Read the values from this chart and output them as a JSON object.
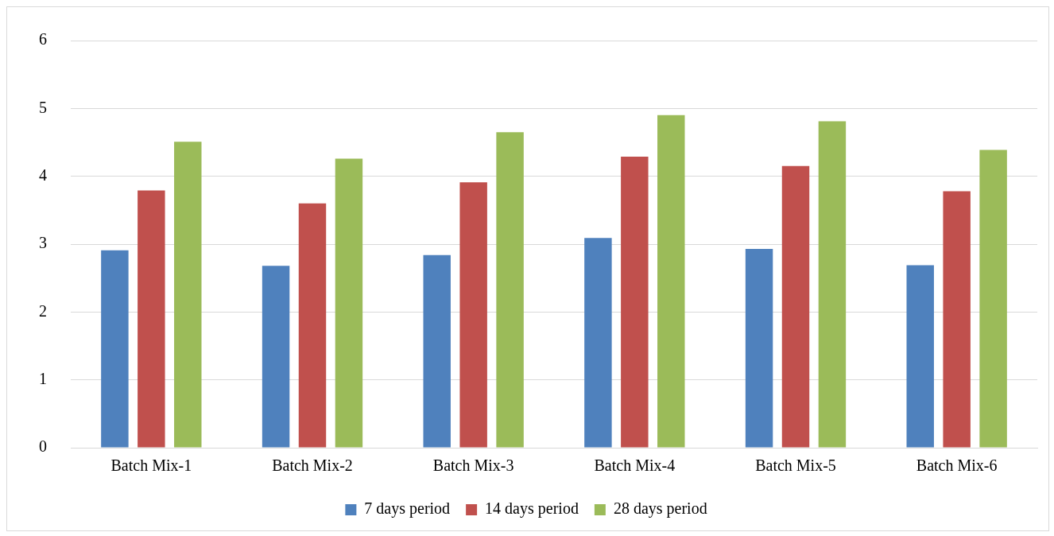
{
  "chart_data": {
    "type": "bar",
    "categories": [
      "Batch Mix-1",
      "Batch Mix-2",
      "Batch Mix-3",
      "Batch Mix-4",
      "Batch Mix-5",
      "Batch Mix-6"
    ],
    "series": [
      {
        "name": "7 days period",
        "color": "#4f81bd",
        "values": [
          2.91,
          2.68,
          2.84,
          3.09,
          2.93,
          2.69
        ]
      },
      {
        "name": "14 days period",
        "color": "#c0504d",
        "values": [
          3.79,
          3.6,
          3.91,
          4.29,
          4.15,
          3.78
        ]
      },
      {
        "name": "28 days period",
        "color": "#9bbb59",
        "values": [
          4.51,
          4.26,
          4.65,
          4.9,
          4.81,
          4.39
        ]
      }
    ],
    "ylim": [
      0,
      6
    ],
    "yticks": [
      0,
      1,
      2,
      3,
      4,
      5,
      6
    ],
    "grid": "y",
    "legend": "bottom"
  }
}
